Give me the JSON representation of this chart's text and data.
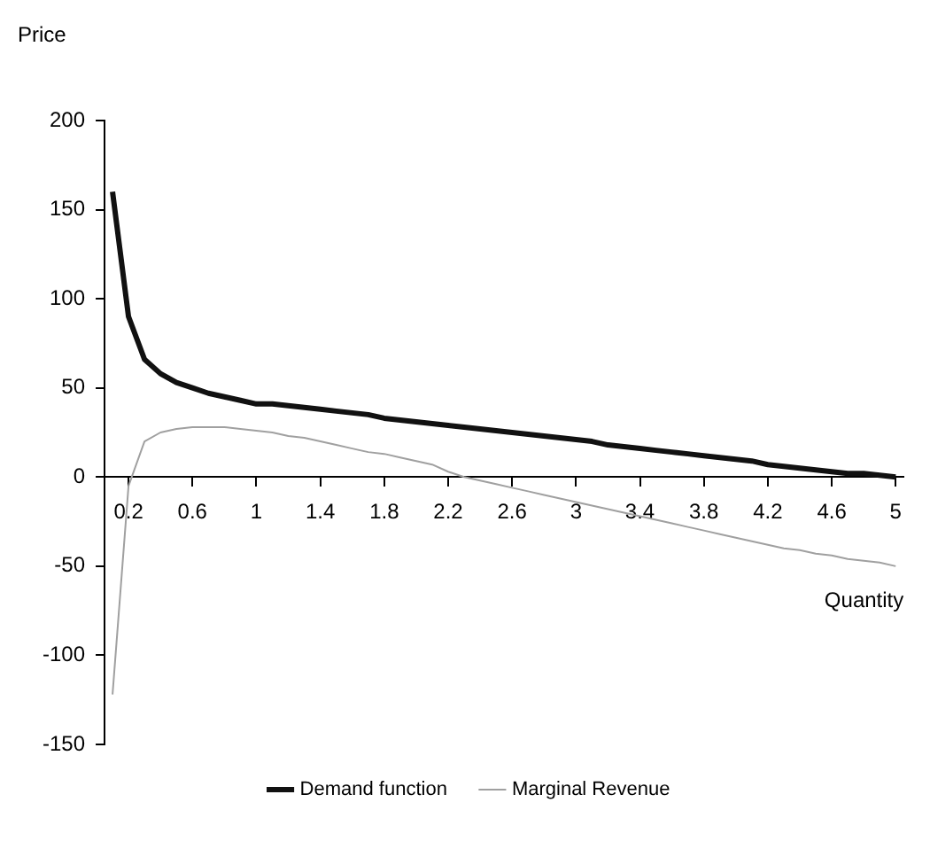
{
  "chart_data": {
    "type": "line",
    "ylabel": "Price",
    "xlabel": "Quantity",
    "x": [
      0.1,
      0.2,
      0.3,
      0.4,
      0.5,
      0.6,
      0.7,
      0.8,
      0.9,
      1.0,
      1.1,
      1.2,
      1.3,
      1.4,
      1.5,
      1.6,
      1.7,
      1.8,
      1.9,
      2.0,
      2.1,
      2.2,
      2.3,
      2.4,
      2.5,
      2.6,
      2.7,
      2.8,
      2.9,
      3.0,
      3.1,
      3.2,
      3.3,
      3.4,
      3.5,
      3.6,
      3.7,
      3.8,
      3.9,
      4.0,
      4.1,
      4.2,
      4.3,
      4.4,
      4.5,
      4.6,
      4.7,
      4.8,
      4.9,
      5.0
    ],
    "series": [
      {
        "name": "Demand function",
        "color": "#111111",
        "values": [
          160,
          90,
          66,
          58,
          53,
          50,
          47,
          45,
          43,
          41,
          41,
          40,
          39,
          38,
          37,
          36,
          35,
          33,
          32,
          31,
          30,
          29,
          28,
          27,
          26,
          25,
          24,
          23,
          22,
          21,
          20,
          18,
          17,
          16,
          15,
          14,
          13,
          12,
          11,
          10,
          9,
          7,
          6,
          5,
          4,
          3,
          2,
          2,
          1,
          0
        ]
      },
      {
        "name": "Marginal Revenue",
        "color": "#a0a0a0",
        "values": [
          -122,
          -5,
          20,
          25,
          27,
          28,
          28,
          28,
          27,
          26,
          25,
          23,
          22,
          20,
          18,
          16,
          14,
          13,
          11,
          9,
          7,
          3,
          0,
          -2,
          -4,
          -6,
          -8,
          -10,
          -12,
          -14,
          -16,
          -18,
          -20,
          -22,
          -24,
          -26,
          -28,
          -30,
          -32,
          -34,
          -36,
          -38,
          -40,
          -41,
          -43,
          -44,
          -46,
          -47,
          -48,
          -50
        ]
      }
    ],
    "xlim": [
      0.05,
      5.05
    ],
    "xticks": [
      0.2,
      0.6,
      1,
      1.4,
      1.8,
      2.2,
      2.6,
      3,
      3.4,
      3.8,
      4.2,
      4.6,
      5
    ],
    "ylim": [
      -150,
      200
    ],
    "yticks": [
      -150,
      -100,
      -50,
      0,
      50,
      100,
      150,
      200
    ],
    "grid": false,
    "legend": "bottom",
    "marker": "none",
    "line_style": "solid"
  }
}
